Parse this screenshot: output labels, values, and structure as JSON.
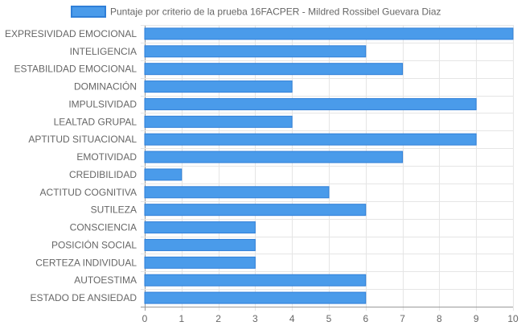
{
  "chart_data": {
    "type": "bar",
    "orientation": "horizontal",
    "categories": [
      "EXPRESIVIDAD EMOCIONAL",
      "INTELIGENCIA",
      "ESTABILIDAD EMOCIONAL",
      "DOMINACIÓN",
      "IMPULSIVIDAD",
      "LEALTAD GRUPAL",
      "APTITUD SITUACIONAL",
      "EMOTIVIDAD",
      "CREDIBILIDAD",
      "ACTITUD COGNITIVA",
      "SUTILEZA",
      "CONSCIENCIA",
      "POSICIÓN SOCIAL",
      "CERTEZA INDIVIDUAL",
      "AUTOESTIMA",
      "ESTADO DE ANSIEDAD"
    ],
    "series": [
      {
        "name": "Puntaje por criterio de la prueba 16FACPER - Mildred Rossibel Guevara Diaz",
        "values": [
          10,
          6,
          7,
          4,
          9,
          4,
          9,
          7,
          1,
          5,
          6,
          3,
          3,
          3,
          6,
          6
        ],
        "color": "#4a9bea",
        "border_color": "#2f7fd8"
      }
    ],
    "xlim": [
      0,
      10
    ],
    "x_ticks": [
      "0",
      "1",
      "2",
      "3",
      "4",
      "5",
      "6",
      "7",
      "8",
      "9",
      "10"
    ],
    "grid": true,
    "legend_position": "top",
    "colors": {
      "grid": "#e5e5e5",
      "axis": "#999999",
      "text": "#666666"
    }
  }
}
